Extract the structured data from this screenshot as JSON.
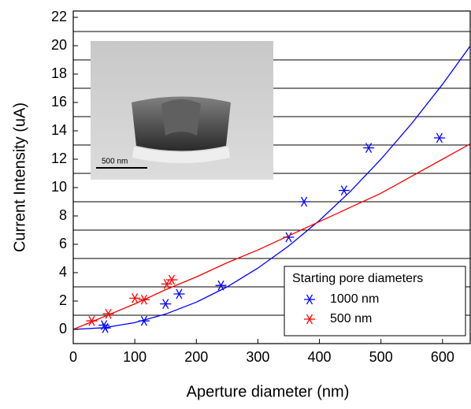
{
  "chart_data": {
    "type": "scatter",
    "x_label": "Aperture diameter (nm)",
    "y_label": "Current Intensity (uA)",
    "xlim": [
      0,
      645
    ],
    "ylim": [
      -1,
      22
    ],
    "xticks": [
      0,
      100,
      200,
      300,
      400,
      500,
      600
    ],
    "yticks": [
      0,
      2,
      4,
      6,
      8,
      10,
      12,
      14,
      16,
      18,
      20,
      22
    ],
    "y_gridlines": [
      1,
      3,
      5,
      7,
      9,
      11,
      13,
      15,
      17,
      19,
      21
    ],
    "legend_title": "Starting pore diameters",
    "legend_position": "lower right",
    "series": [
      {
        "name": "1000 nm",
        "color": "#0000ff",
        "x": [
          50,
          52,
          115,
          150,
          172,
          240,
          350,
          375,
          440,
          480,
          595
        ],
        "values": [
          0.3,
          0.1,
          0.6,
          1.8,
          2.5,
          3.1,
          6.5,
          9.0,
          9.8,
          12.8,
          13.5
        ],
        "fit_x": [
          0,
          50,
          100,
          150,
          200,
          250,
          300,
          350,
          400,
          450,
          500,
          550,
          600,
          650
        ],
        "fit_values": [
          0,
          0.12,
          0.48,
          1.08,
          1.92,
          3.0,
          4.32,
          5.88,
          7.68,
          9.72,
          12.0,
          14.52,
          17.28,
          20.28
        ]
      },
      {
        "name": "500 nm",
        "color": "#ff0000",
        "x": [
          30,
          57,
          100,
          115,
          152,
          160
        ],
        "values": [
          0.6,
          1.1,
          2.2,
          2.1,
          3.2,
          3.5
        ],
        "fit_x": [
          0,
          50,
          100,
          150,
          200,
          250,
          300,
          350,
          400,
          450,
          500,
          550,
          600,
          650
        ],
        "fit_values": [
          0,
          0.9,
          1.8,
          2.8,
          3.7,
          4.7,
          5.6,
          6.6,
          7.6,
          8.6,
          9.6,
          10.8,
          12.0,
          13.2
        ]
      }
    ],
    "inset_scale_label": "500 nm"
  }
}
